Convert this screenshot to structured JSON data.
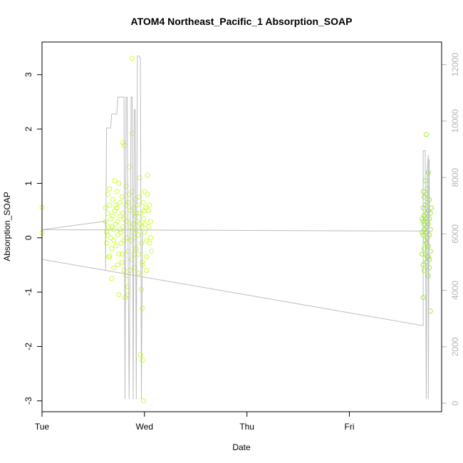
{
  "chart_data": {
    "type": "scatter",
    "title": "ATOM4 Northeast_Pacific_1 Absorption_SOAP",
    "xlabel": "Date",
    "ylabel": "Absorption_SOAP",
    "x_ticks": [
      "Tue",
      "Wed",
      "Thu",
      "Fri"
    ],
    "xlim": [
      0.0,
      3.9
    ],
    "ylim": [
      -3.2,
      3.6
    ],
    "y_ticks": [
      -3,
      -2,
      -1,
      0,
      1,
      2,
      3
    ],
    "y2lim": [
      -300,
      12800
    ],
    "y2_ticks": [
      0,
      2000,
      4000,
      6000,
      8000,
      10000,
      12000
    ],
    "grid": false,
    "colors": {
      "points_wed": "#ccff33",
      "points_fri": "#99ee33",
      "line": "#bdbdbd",
      "frame": "#000000",
      "right_axis": "#b5b5b5"
    },
    "series": [
      {
        "kind": "points",
        "axis": "left",
        "color_key": "points_wed",
        "points": [
          [
            0.0,
            0.56
          ],
          [
            0.0,
            0.09
          ],
          [
            0.62,
            0.55
          ],
          [
            0.62,
            0.3
          ],
          [
            0.63,
            0.1
          ],
          [
            0.63,
            -0.1
          ],
          [
            0.64,
            0.8
          ],
          [
            0.64,
            0.45
          ],
          [
            0.65,
            0.2
          ],
          [
            0.65,
            -0.35
          ],
          [
            0.66,
            0.9
          ],
          [
            0.66,
            0.6
          ],
          [
            0.67,
            0.35
          ],
          [
            0.67,
            0.0
          ],
          [
            0.68,
            -0.2
          ],
          [
            0.68,
            -0.75
          ],
          [
            0.69,
            0.7
          ],
          [
            0.69,
            0.4
          ],
          [
            0.7,
            0.15
          ],
          [
            0.7,
            -0.05
          ],
          [
            0.71,
            1.05
          ],
          [
            0.71,
            0.5
          ],
          [
            0.72,
            0.25
          ],
          [
            0.72,
            -0.15
          ],
          [
            0.73,
            0.85
          ],
          [
            0.73,
            0.55
          ],
          [
            0.74,
            0.3
          ],
          [
            0.74,
            0.05
          ],
          [
            0.75,
            -0.3
          ],
          [
            0.75,
            1.0
          ],
          [
            0.76,
            0.65
          ],
          [
            0.76,
            0.4
          ],
          [
            0.77,
            0.1
          ],
          [
            0.77,
            -0.1
          ],
          [
            0.78,
            -0.45
          ],
          [
            0.78,
            0.75
          ],
          [
            0.79,
            0.45
          ],
          [
            0.79,
            0.2
          ],
          [
            0.8,
            -0.05
          ],
          [
            0.8,
            -0.6
          ],
          [
            0.79,
            1.75
          ],
          [
            0.8,
            1.7
          ],
          [
            0.81,
            -1.1
          ],
          [
            0.82,
            0.95
          ],
          [
            0.82,
            0.6
          ],
          [
            0.83,
            0.3
          ],
          [
            0.83,
            0.0
          ],
          [
            0.84,
            -0.25
          ],
          [
            0.84,
            -0.9
          ],
          [
            0.85,
            1.3
          ],
          [
            0.85,
            0.8
          ],
          [
            0.86,
            0.5
          ],
          [
            0.86,
            0.2
          ],
          [
            0.87,
            -0.05
          ],
          [
            0.87,
            -0.4
          ],
          [
            0.88,
            1.92
          ],
          [
            0.88,
            0.85
          ],
          [
            0.89,
            0.55
          ],
          [
            0.89,
            0.25
          ],
          [
            0.9,
            0.0
          ],
          [
            0.9,
            -0.55
          ],
          [
            0.91,
            0.7
          ],
          [
            0.91,
            0.4
          ],
          [
            0.92,
            0.15
          ],
          [
            0.92,
            -0.2
          ],
          [
            0.93,
            0.6
          ],
          [
            0.93,
            0.3
          ],
          [
            0.94,
            0.05
          ],
          [
            0.94,
            -0.3
          ],
          [
            0.95,
            1.1
          ],
          [
            0.95,
            0.75
          ],
          [
            0.96,
            0.45
          ],
          [
            0.96,
            -2.15
          ],
          [
            0.97,
            0.2
          ],
          [
            0.97,
            -0.1
          ],
          [
            0.98,
            -0.45
          ],
          [
            0.98,
            -2.25
          ],
          [
            0.99,
            0.65
          ],
          [
            0.99,
            0.35
          ],
          [
            1.0,
            0.1
          ],
          [
            0.88,
            3.3
          ],
          [
            0.97,
            -0.95
          ],
          [
            0.98,
            -1.3
          ],
          [
            0.99,
            -3.0
          ],
          [
            1.0,
            0.85
          ],
          [
            1.01,
            0.55
          ],
          [
            1.01,
            0.25
          ],
          [
            1.02,
            -0.05
          ],
          [
            1.02,
            -0.35
          ],
          [
            1.03,
            1.15
          ],
          [
            1.03,
            0.8
          ],
          [
            1.04,
            0.5
          ],
          [
            1.04,
            0.2
          ],
          [
            1.05,
            -0.1
          ],
          [
            1.05,
            0.6
          ],
          [
            1.06,
            0.3
          ],
          [
            1.06,
            0.0
          ],
          [
            1.07,
            -0.25
          ],
          [
            0.75,
            -1.05
          ],
          [
            0.84,
            -1.05
          ],
          [
            0.66,
            -0.35
          ],
          [
            0.7,
            -0.55
          ],
          [
            0.74,
            -0.5
          ],
          [
            0.78,
            -0.3
          ],
          [
            0.82,
            -0.7
          ],
          [
            0.86,
            -0.6
          ],
          [
            0.9,
            -0.3
          ],
          [
            0.94,
            -0.65
          ],
          [
            0.98,
            -0.5
          ],
          [
            1.02,
            -0.6
          ],
          [
            0.64,
            0.05
          ],
          [
            0.68,
            0.2
          ],
          [
            0.72,
            0.6
          ],
          [
            0.76,
            0.15
          ],
          [
            0.8,
            0.35
          ],
          [
            0.84,
            0.65
          ],
          [
            0.88,
            0.1
          ],
          [
            0.92,
            0.45
          ],
          [
            0.96,
            0.25
          ],
          [
            1.0,
            0.5
          ]
        ]
      },
      {
        "kind": "points",
        "axis": "left",
        "color_key": "points_fri",
        "points": [
          [
            3.72,
            0.85
          ],
          [
            3.72,
            0.55
          ],
          [
            3.72,
            0.3
          ],
          [
            3.72,
            0.05
          ],
          [
            3.72,
            -0.5
          ],
          [
            3.72,
            -1.1
          ],
          [
            3.73,
            0.75
          ],
          [
            3.73,
            0.4
          ],
          [
            3.73,
            0.15
          ],
          [
            3.73,
            -0.2
          ],
          [
            3.73,
            -0.6
          ],
          [
            3.74,
            1.05
          ],
          [
            3.74,
            0.6
          ],
          [
            3.74,
            0.35
          ],
          [
            3.74,
            0.1
          ],
          [
            3.74,
            -0.3
          ],
          [
            3.75,
            1.9
          ],
          [
            3.75,
            0.8
          ],
          [
            3.75,
            0.45
          ],
          [
            3.75,
            0.2
          ],
          [
            3.75,
            -0.1
          ],
          [
            3.75,
            -0.45
          ],
          [
            3.76,
            0.65
          ],
          [
            3.76,
            0.3
          ],
          [
            3.76,
            0.0
          ],
          [
            3.76,
            -0.35
          ],
          [
            3.77,
            1.2
          ],
          [
            3.77,
            0.5
          ],
          [
            3.77,
            0.25
          ],
          [
            3.77,
            -0.15
          ],
          [
            3.77,
            -0.7
          ],
          [
            3.78,
            0.7
          ],
          [
            3.78,
            0.35
          ],
          [
            3.78,
            0.05
          ],
          [
            3.78,
            -0.4
          ],
          [
            3.79,
            0.45
          ],
          [
            3.79,
            0.15
          ],
          [
            3.79,
            -0.25
          ],
          [
            3.79,
            -1.35
          ],
          [
            3.8,
            0.55
          ],
          [
            3.71,
            0.35
          ],
          [
            3.71,
            0.1
          ],
          [
            3.71,
            -0.3
          ],
          [
            3.76,
            0.9
          ],
          [
            3.78,
            -0.55
          ],
          [
            3.74,
            -0.05
          ],
          [
            3.73,
            0.25
          ],
          [
            3.77,
            -0.35
          ]
        ]
      },
      {
        "kind": "line",
        "axis": "right",
        "color_key": "line",
        "points": [
          [
            0.0,
            6100
          ],
          [
            0.0,
            5100
          ],
          [
            3.72,
            2750
          ],
          [
            3.72,
            8950
          ],
          [
            3.73,
            8950
          ],
          [
            3.74,
            8950
          ],
          [
            3.74,
            8800
          ],
          [
            3.75,
            150
          ],
          [
            3.76,
            8300
          ],
          [
            3.77,
            8800
          ],
          [
            3.77,
            150
          ],
          [
            3.78,
            8650
          ],
          [
            3.78,
            8500
          ],
          [
            3.78,
            6600
          ],
          [
            3.77,
            6100
          ],
          [
            0.0,
            6150
          ],
          [
            0.62,
            6450
          ],
          [
            0.62,
            4700
          ],
          [
            0.63,
            9750
          ],
          [
            0.64,
            9750
          ],
          [
            0.65,
            9750
          ],
          [
            0.67,
            9750
          ],
          [
            0.68,
            10250
          ],
          [
            0.69,
            10250
          ],
          [
            0.71,
            10250
          ],
          [
            0.73,
            10250
          ],
          [
            0.74,
            10850
          ],
          [
            0.75,
            10850
          ],
          [
            0.76,
            10850
          ],
          [
            0.78,
            10850
          ],
          [
            0.79,
            10850
          ],
          [
            0.8,
            10850
          ],
          [
            0.81,
            150
          ],
          [
            0.82,
            10850
          ],
          [
            0.83,
            10850
          ],
          [
            0.85,
            150
          ],
          [
            0.87,
            10850
          ],
          [
            0.88,
            10850
          ],
          [
            0.89,
            150
          ],
          [
            0.9,
            10400
          ],
          [
            0.91,
            10400
          ],
          [
            0.92,
            150
          ],
          [
            0.93,
            12300
          ],
          [
            0.94,
            12300
          ],
          [
            0.95,
            12300
          ],
          [
            0.96,
            12200
          ],
          [
            0.97,
            150
          ],
          [
            0.98,
            6100
          ]
        ]
      }
    ]
  }
}
